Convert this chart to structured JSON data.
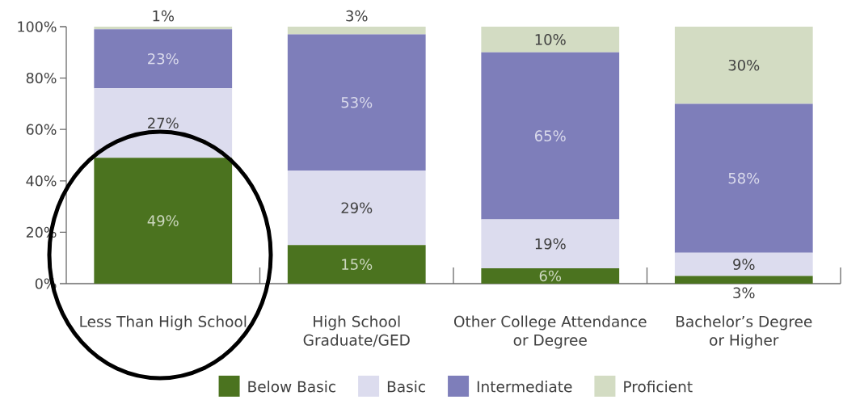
{
  "chart_data": {
    "type": "bar",
    "stacked": true,
    "categories": [
      "Less Than High School",
      "High School Graduate/GED",
      "Other College Attendance or Degree",
      "Bachelor’s Degree or Higher"
    ],
    "series": [
      {
        "name": "Below Basic",
        "color": "#4b731f",
        "values": [
          49,
          15,
          6,
          3
        ],
        "value_labels": [
          "49%",
          "15%",
          "6%",
          "3%"
        ]
      },
      {
        "name": "Basic",
        "color": "#dcdcee",
        "values": [
          27,
          29,
          19,
          9
        ],
        "value_labels": [
          "27%",
          "29%",
          "19%",
          "9%"
        ]
      },
      {
        "name": "Intermediate",
        "color": "#7e7eba",
        "values": [
          23,
          53,
          65,
          58
        ],
        "value_labels": [
          "23%",
          "53%",
          "65%",
          "58%"
        ]
      },
      {
        "name": "Proficient",
        "color": "#d3dcc3",
        "values": [
          1,
          3,
          10,
          30
        ],
        "value_labels": [
          "1%",
          "3%",
          "10%",
          "30%"
        ]
      }
    ],
    "ylim": [
      0,
      100
    ],
    "yticks": [
      {
        "value": 0,
        "label": "0%"
      },
      {
        "value": 20,
        "label": "20%"
      },
      {
        "value": 40,
        "label": "40%"
      },
      {
        "value": 60,
        "label": "60%"
      },
      {
        "value": 80,
        "label": "80%"
      },
      {
        "value": 100,
        "label": "100%"
      }
    ],
    "legend": "bottom"
  }
}
